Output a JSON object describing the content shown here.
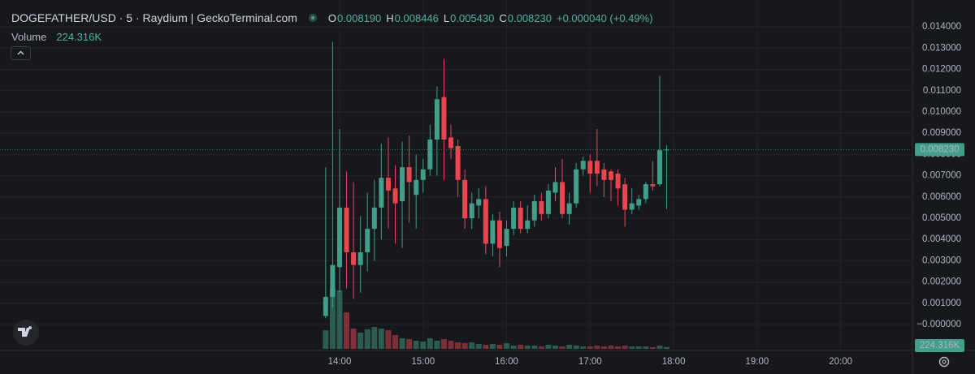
{
  "chart_data": {
    "type": "candlestick",
    "title": "DOGEFATHER/USD · 5 · Raydium | GeckoTerminal.com",
    "ohlc_legend": [
      {
        "key": "O",
        "label": "0.008190"
      },
      {
        "key": "H",
        "label": "0.008446"
      },
      {
        "key": "L",
        "label": "0.005430"
      },
      {
        "key": "C",
        "label": "0.008230"
      }
    ],
    "change": "+0.000040 (+0.49%)",
    "volume_label": "Volume",
    "volume_value_label": "224.316K",
    "last_price_label": "0.008230",
    "up_color": "#3f9f87",
    "down_color": "#e8464f",
    "x": [
      "13:50",
      "13:55",
      "14:00",
      "14:05",
      "14:10",
      "14:15",
      "14:20",
      "14:25",
      "14:30",
      "14:35",
      "14:40",
      "14:45",
      "14:50",
      "14:55",
      "15:00",
      "15:05",
      "15:10",
      "15:15",
      "15:20",
      "15:25",
      "15:30",
      "15:35",
      "15:40",
      "15:45",
      "15:50",
      "15:55",
      "16:00",
      "16:05",
      "16:10",
      "16:15",
      "16:20",
      "16:25",
      "16:30",
      "16:35",
      "16:40",
      "16:45",
      "16:50",
      "16:55",
      "17:00",
      "17:05",
      "17:10",
      "17:15",
      "17:20",
      "17:25",
      "17:30",
      "17:35",
      "17:40",
      "17:45",
      "17:50",
      "17:55"
    ],
    "open": [
      0.0004,
      0.0013,
      0.0027,
      0.0055,
      0.0034,
      0.0028,
      0.0034,
      0.0045,
      0.0055,
      0.0069,
      0.0064,
      0.0058,
      0.0074,
      0.0061,
      0.0068,
      0.0073,
      0.0087,
      0.0107,
      0.0088,
      0.0084,
      0.0068,
      0.005,
      0.0056,
      0.0059,
      0.0038,
      0.0049,
      0.0037,
      0.0045,
      0.0055,
      0.0045,
      0.0049,
      0.0058,
      0.0052,
      0.0062,
      0.0067,
      0.0052,
      0.0057,
      0.0073,
      0.0077,
      0.0077,
      0.0073,
      0.0072,
      0.0071,
      0.0066,
      0.0054,
      0.0056,
      0.0059,
      0.0066,
      0.0066,
      0.00819
    ],
    "high": [
      0.0074,
      0.0133,
      0.0092,
      0.0072,
      0.0067,
      0.0051,
      0.0062,
      0.0068,
      0.0085,
      0.0088,
      0.0075,
      0.0086,
      0.0089,
      0.008,
      0.0078,
      0.0094,
      0.0112,
      0.0125,
      0.0094,
      0.0087,
      0.0073,
      0.0062,
      0.0064,
      0.0065,
      0.0052,
      0.0053,
      0.0049,
      0.0058,
      0.0058,
      0.0056,
      0.0061,
      0.0062,
      0.0066,
      0.0074,
      0.0078,
      0.0062,
      0.0076,
      0.0079,
      0.008,
      0.0092,
      0.0076,
      0.0073,
      0.0073,
      0.0069,
      0.0064,
      0.0061,
      0.0067,
      0.0077,
      0.0117,
      0.008446
    ],
    "low": [
      0.0003,
      0.0008,
      0.0015,
      0.0017,
      0.0012,
      0.0015,
      0.0025,
      0.003,
      0.004,
      0.0045,
      0.0038,
      0.0036,
      0.0048,
      0.0045,
      0.0062,
      0.007,
      0.007,
      0.0068,
      0.0078,
      0.006,
      0.0045,
      0.0045,
      0.005,
      0.0033,
      0.0032,
      0.0027,
      0.0032,
      0.0042,
      0.0043,
      0.0043,
      0.0046,
      0.0049,
      0.005,
      0.0058,
      0.005,
      0.0047,
      0.0055,
      0.007,
      0.0062,
      0.0065,
      0.006,
      0.0058,
      0.0056,
      0.0046,
      0.0052,
      0.0054,
      0.0057,
      0.0063,
      0.0065,
      0.00543
    ],
    "close": [
      0.0013,
      0.0028,
      0.0055,
      0.0034,
      0.0028,
      0.0034,
      0.0045,
      0.0055,
      0.0069,
      0.0063,
      0.0057,
      0.0074,
      0.0067,
      0.0068,
      0.0073,
      0.0087,
      0.0106,
      0.0087,
      0.0083,
      0.0068,
      0.005,
      0.0057,
      0.0059,
      0.0038,
      0.0049,
      0.0036,
      0.0045,
      0.0055,
      0.0045,
      0.0049,
      0.0058,
      0.0052,
      0.0063,
      0.0067,
      0.0052,
      0.0057,
      0.0073,
      0.0077,
      0.0071,
      0.0071,
      0.0068,
      0.0068,
      0.0064,
      0.0054,
      0.0057,
      0.0059,
      0.0066,
      0.0065,
      0.0082,
      0.00823
    ],
    "volume": [
      2300000,
      7500000,
      7200000,
      4500000,
      2500000,
      2000000,
      2400000,
      2700000,
      2500000,
      2300000,
      1700000,
      1300000,
      1200000,
      1000000,
      900000,
      1300000,
      1000000,
      1200000,
      1000000,
      800000,
      700000,
      800000,
      600000,
      500000,
      600000,
      500000,
      700000,
      400000,
      500000,
      400000,
      400000,
      300000,
      500000,
      400000,
      300000,
      500000,
      400000,
      300000,
      300000,
      400000,
      300000,
      400000,
      300000,
      400000,
      300000,
      300000,
      300000,
      200000,
      400000,
      224316
    ],
    "xlim": [
      "09:56",
      "20:51"
    ],
    "xticks": [
      "14:00",
      "15:00",
      "16:00",
      "17:00",
      "18:00",
      "19:00",
      "20:00"
    ],
    "ylim": [
      -0.001145,
      0.015267
    ],
    "yticks": [
      {
        "value": 0,
        "label": "−0.000000"
      },
      {
        "value": 0.001,
        "label": "0.001000"
      },
      {
        "value": 0.002,
        "label": "0.002000"
      },
      {
        "value": 0.003,
        "label": "0.003000"
      },
      {
        "value": 0.004,
        "label": "0.004000"
      },
      {
        "value": 0.005,
        "label": "0.005000"
      },
      {
        "value": 0.006,
        "label": "0.006000"
      },
      {
        "value": 0.007,
        "label": "0.007000"
      },
      {
        "value": 0.008,
        "label": "0.008000"
      },
      {
        "value": 0.009,
        "label": "0.009000"
      },
      {
        "value": 0.01,
        "label": "0.010000"
      },
      {
        "value": 0.011,
        "label": "0.011000"
      },
      {
        "value": 0.012,
        "label": "0.012000"
      },
      {
        "value": 0.013,
        "label": "0.013000"
      },
      {
        "value": 0.014,
        "label": "0.014000"
      }
    ],
    "grid": true
  }
}
